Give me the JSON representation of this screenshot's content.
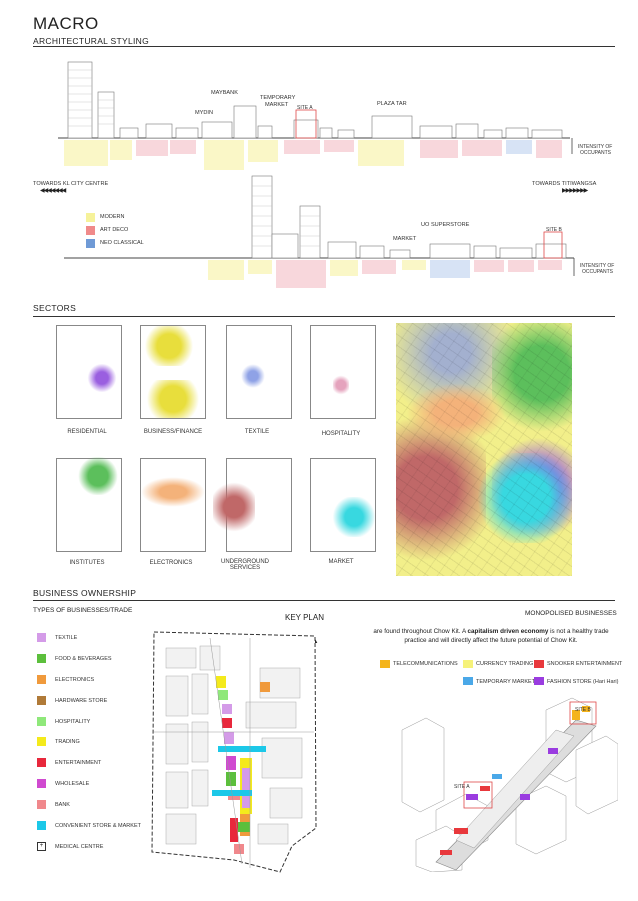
{
  "title": "MACRO",
  "styling": {
    "heading": "ARCHITECTURAL STYLING",
    "row1_labels": {
      "mydin": "MYDIN",
      "maybank": "MAYBANK",
      "temporary": "TEMPORARY",
      "market": "MARKET",
      "site_a": "SITE A",
      "plaza_tar": "PLAZA TAR"
    },
    "row2_labels": {
      "uo_superstore": "UO SUPERSTORE",
      "market": "MARKET",
      "site_b": "SITE B"
    },
    "intensity": "INTENSITY OF",
    "occupants": "OCCUPANTS",
    "towards_left": "TOWARDS KL CITY CENTRE",
    "towards_right": "TOWARDS TITIWANGSA",
    "legend": [
      {
        "label": "MODERN",
        "color": "#f6f29a"
      },
      {
        "label": "ART DECO",
        "color": "#f08a8a"
      },
      {
        "label": "NEO CLASSICAL",
        "color": "#6f9ad6"
      }
    ]
  },
  "sectors": {
    "heading": "SECTORS",
    "items": [
      {
        "label": "RESIDENTIAL",
        "color": "#9a5fe0"
      },
      {
        "label": "BUSINESS/FINANCE",
        "color": "#e8de3c"
      },
      {
        "label": "TEXTILE",
        "color": "#8fa2e6"
      },
      {
        "label": "HOSPITALITY",
        "color": "#e5a3bd"
      },
      {
        "label": "INSTITUTES",
        "color": "#5cbf5c"
      },
      {
        "label": "ELECTRONICS",
        "color": "#f4b27a"
      },
      {
        "label": "UNDERGROUND SERVICES",
        "color": "#c06868"
      },
      {
        "label": "MARKET",
        "color": "#38d8e0"
      }
    ]
  },
  "business": {
    "heading": "BUSINESS OWNERSHIP",
    "types_heading": "TYPES OF BUSINESSES/TRADE",
    "key_plan": "KEY PLAN",
    "types": [
      {
        "label": "TEXTILE",
        "color": "#d49be8"
      },
      {
        "label": "FOOD & BEVERAGES",
        "color": "#5cbf3c"
      },
      {
        "label": "ELECTRONICS",
        "color": "#f09a3c"
      },
      {
        "label": "HARDWARE STORE",
        "color": "#b07a38"
      },
      {
        "label": "HOSPITALITY",
        "color": "#8fe87a"
      },
      {
        "label": "TRADING",
        "color": "#f4ea1c"
      },
      {
        "label": "ENTERTAINMENT",
        "color": "#e8283c"
      },
      {
        "label": "WHOLESALE",
        "color": "#d04ad0"
      },
      {
        "label": "BANK",
        "color": "#f0888c"
      },
      {
        "label": "CONVENIENT STORE & MARKET",
        "color": "#1cc8e8"
      },
      {
        "label": "MEDICAL CENTRE",
        "color": "#ffffff"
      }
    ],
    "monopolised": {
      "heading": "MONOPOLISED BUSINESSES",
      "text_pre": "are found throughout Chow Kit. A ",
      "text_bold": "capitalism driven economy",
      "text_post": " is not a healthy trade practice and will directly affect the future potential of Chow Kit.",
      "legend": [
        {
          "label": "TELECOMMUNICATIONS",
          "color": "#f4b41c"
        },
        {
          "label": "CURRENCY TRADING",
          "color": "#f6f27a"
        },
        {
          "label": "SNOOKER ENTERTAINMENT",
          "color": "#e8383c"
        },
        {
          "label": "TEMPORARY MARKET",
          "color": "#4aa8e8"
        },
        {
          "label": "FASHION STORE (Hari Hari)",
          "color": "#9a3ce0"
        }
      ],
      "site_a": "SITE A",
      "site_b": "SITE B"
    }
  }
}
